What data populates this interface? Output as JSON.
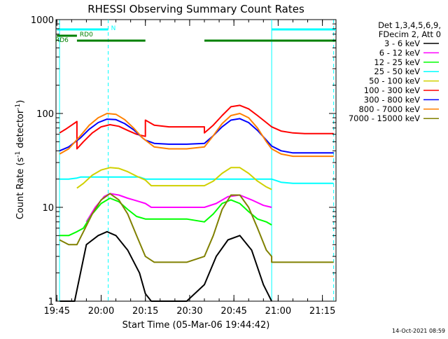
{
  "chart_data": {
    "type": "line",
    "title": "RHESSI Observing Summary Count Rates",
    "xlabel": "Start Time (05-Mar-06 19:44:42)",
    "ylabel": "Count Rate (s-1 detector-1)",
    "ylabel_main": "Count Rate (s",
    "ylabel_sup1": "-1",
    "ylabel_mid": " detector",
    "ylabel_sup2": "-1",
    "ylabel_end": ")",
    "y_scale": "log",
    "ylim": [
      1,
      1000
    ],
    "xlim_minutes": [
      -0.3,
      94.6
    ],
    "x_ticks": [
      {
        "label": "19:45",
        "minute": 0
      },
      {
        "label": "20:00",
        "minute": 15
      },
      {
        "label": "20:15",
        "minute": 30
      },
      {
        "label": "20:30",
        "minute": 45
      },
      {
        "label": "20:45",
        "minute": 60
      },
      {
        "label": "21:00",
        "minute": 75
      },
      {
        "label": "21:15",
        "minute": 90
      }
    ],
    "y_ticks": [
      {
        "label": "1",
        "value": 1
      },
      {
        "label": "10",
        "value": 10
      },
      {
        "label": "100",
        "value": 100
      },
      {
        "label": "1000",
        "value": 1000
      }
    ],
    "legend_header": [
      "Det 1,3,4,5,6,9,",
      "FDecim 2, Att 0"
    ],
    "legend_position": "right",
    "footer_date": "14-Oct-2021 08:59",
    "flags": [
      {
        "label": "N",
        "color": "#00ffff",
        "segments": [
          [
            0,
            17.4
          ],
          [
            72.8,
            94.6
          ]
        ]
      },
      {
        "label": "RD0",
        "color": "#008000",
        "segments": [
          [
            0,
            6.8
          ]
        ]
      },
      {
        "label": "RD6",
        "color": "#008000",
        "segments": [
          [
            6.8,
            30
          ],
          [
            50,
            72.8
          ],
          [
            72.8,
            94.6
          ]
        ]
      }
    ],
    "vertical_markers": [
      {
        "minute": 72.8,
        "style": "solid",
        "color": "#00ffff"
      },
      {
        "minute": 0.9,
        "style": "solid",
        "color": "#00ffff"
      },
      {
        "minute": 17.4,
        "style": "dashed",
        "color": "#00ffff"
      },
      {
        "minute": 93.8,
        "style": "dashed",
        "color": "#00ffff"
      }
    ],
    "series": [
      {
        "name": "3 - 6 keV",
        "color": "#000000",
        "x": [
          1,
          6,
          10,
          14,
          17,
          20,
          24,
          28,
          30,
          32,
          38,
          44,
          50,
          54,
          58,
          62,
          66,
          70,
          72.8
        ],
        "values": [
          1,
          1,
          4,
          5,
          5.5,
          5,
          3.5,
          2,
          1.2,
          1,
          1,
          1,
          1.5,
          3,
          4.5,
          5,
          3.5,
          1.5,
          1
        ]
      },
      {
        "name": "6 - 12 keV",
        "color": "#ff00ff",
        "x": [
          10,
          13,
          16,
          18,
          21,
          24,
          26,
          28,
          30,
          32,
          36,
          40,
          44,
          48,
          50,
          54,
          58,
          62,
          66,
          70,
          72.8
        ],
        "values": [
          7,
          10,
          13,
          14,
          13.5,
          12.5,
          12,
          11.5,
          11,
          10,
          10,
          10,
          10,
          10,
          10,
          11,
          13,
          13.5,
          12,
          10.5,
          10
        ]
      },
      {
        "name": "12 - 25 keV",
        "color": "#00ff00",
        "x": [
          0.9,
          4,
          6.8,
          9,
          12,
          15,
          18,
          21,
          24,
          27,
          30,
          33,
          38,
          44,
          50,
          53,
          56,
          59,
          62,
          65,
          68,
          71,
          72.8
        ],
        "values": [
          5,
          5,
          5.5,
          6,
          8.5,
          11,
          12.5,
          11.5,
          9.5,
          8,
          7.5,
          7.5,
          7.5,
          7.5,
          7,
          8.5,
          11,
          12,
          11,
          9,
          7.5,
          7,
          6.5
        ]
      },
      {
        "name": "25 - 50 keV",
        "color": "#00ffff",
        "x": [
          0.9,
          4,
          6.8,
          8,
          12,
          16,
          20,
          24,
          28,
          30,
          32,
          36,
          40,
          44,
          48,
          50,
          72.8,
          76,
          80,
          84,
          88,
          92,
          93.8
        ],
        "values": [
          20,
          20,
          20.5,
          21,
          21,
          21,
          21,
          21,
          21,
          20,
          20,
          20,
          20,
          20,
          20,
          20,
          20,
          18.5,
          18,
          18,
          18,
          18,
          18
        ]
      },
      {
        "name": "50 - 100 keV",
        "color": "#d0d000",
        "x": [
          6.8,
          9,
          12,
          15,
          18,
          21,
          24,
          27,
          30,
          32,
          36,
          40,
          44,
          48,
          50,
          53,
          56,
          59,
          62,
          65,
          68,
          71,
          72.8
        ],
        "values": [
          16,
          18,
          22,
          25,
          26.5,
          26,
          24,
          21.5,
          19.5,
          17,
          17,
          17,
          17,
          17,
          17,
          19,
          23,
          26.5,
          26.5,
          23,
          19,
          16.5,
          15.5
        ]
      },
      {
        "name": "100 - 300 keV",
        "color": "#ff0000",
        "x": [
          0.9,
          3,
          5,
          6.8,
          6.8,
          9,
          12,
          15,
          18,
          21,
          24,
          27,
          30,
          30,
          33,
          38,
          44,
          50,
          50,
          53,
          56,
          59,
          62,
          65,
          68,
          71,
          72.8,
          72.8,
          76,
          80,
          84,
          88,
          92,
          93.8
        ],
        "values": [
          62,
          68,
          75,
          82,
          42,
          50,
          62,
          72,
          76,
          73,
          66,
          60,
          57,
          85,
          75,
          72,
          72,
          72,
          62,
          75,
          95,
          118,
          122,
          112,
          95,
          80,
          72,
          72,
          65,
          62,
          61,
          61,
          61,
          61
        ]
      },
      {
        "name": "300 - 800 keV",
        "color": "#0000ff",
        "x": [
          0.9,
          4,
          8,
          11,
          14,
          17,
          20,
          23,
          26,
          29,
          30,
          33,
          38,
          44,
          50,
          53,
          56,
          59,
          62,
          65,
          68,
          71,
          72.8,
          72.8,
          76,
          80,
          84,
          88,
          92,
          93.8
        ],
        "values": [
          40,
          44,
          55,
          68,
          80,
          87,
          86,
          78,
          67,
          55,
          52,
          48,
          47,
          47,
          48,
          58,
          72,
          85,
          88,
          80,
          66,
          52,
          45,
          45,
          40,
          38,
          38,
          38,
          38,
          38
        ]
      },
      {
        "name": "800 - 7000 keV",
        "color": "#ff8000",
        "x": [
          0.9,
          4,
          8,
          11,
          14,
          17,
          20,
          23,
          26,
          29,
          30,
          33,
          38,
          44,
          50,
          53,
          56,
          59,
          62,
          65,
          68,
          71,
          72.8,
          72.8,
          76,
          80,
          84,
          88,
          92,
          93.8
        ],
        "values": [
          37,
          42,
          58,
          75,
          90,
          100,
          98,
          86,
          70,
          55,
          52,
          44,
          42,
          42,
          44,
          58,
          78,
          95,
          100,
          90,
          70,
          50,
          42,
          42,
          37,
          35,
          35,
          35,
          35,
          35
        ]
      },
      {
        "name": "7000 - 15000 keV",
        "color": "#808000",
        "x": [
          0.9,
          4,
          6.8,
          9,
          12,
          15,
          18,
          21,
          24,
          27,
          30,
          33,
          38,
          44,
          50,
          53,
          56,
          59,
          62,
          65,
          68,
          71,
          72.8,
          72.8,
          76,
          80,
          84,
          88,
          92,
          93.8
        ],
        "values": [
          4.5,
          4,
          4,
          5.5,
          8.5,
          12,
          14,
          12,
          8.5,
          5,
          3,
          2.6,
          2.6,
          2.6,
          3,
          5,
          9.5,
          13.5,
          13.5,
          10,
          6,
          3.5,
          3,
          2.6,
          2.6,
          2.6,
          2.6,
          2.6,
          2.6,
          2.6
        ]
      }
    ]
  }
}
